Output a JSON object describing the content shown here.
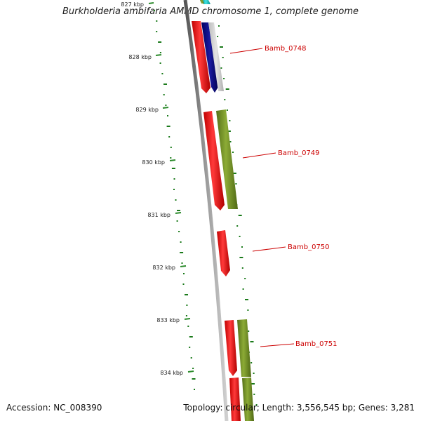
{
  "title": "Burkholderia ambifaria AMMD chromosome 1, complete genome",
  "footer": {
    "accession": "Accession: NC_008390",
    "stats": "Topology: circular; Length: 3,556,545 bp; Genes: 3,281"
  },
  "colors": {
    "backbone": "#888888",
    "kbp_tick": "#2a8a2a",
    "forward_strand": "#ff2020",
    "cds_green": "#7a9a2a",
    "cds_blue": "#0a0a8a",
    "cds_cyan": "#00c0c0",
    "gene_label": "#cc0000",
    "gc_dots": "#1a7a1a"
  },
  "kbp_ticks": [
    {
      "label": "827 kbp",
      "kbp": 827
    },
    {
      "label": "828 kbp",
      "kbp": 828
    },
    {
      "label": "829 kbp",
      "kbp": 829
    },
    {
      "label": "830 kbp",
      "kbp": 830
    },
    {
      "label": "831 kbp",
      "kbp": 831
    },
    {
      "label": "832 kbp",
      "kbp": 832
    },
    {
      "label": "833 kbp",
      "kbp": 833
    },
    {
      "label": "834 kbp",
      "kbp": 834
    }
  ],
  "genes": [
    {
      "name": "Bamb_0748"
    },
    {
      "name": "Bamb_0749"
    },
    {
      "name": "Bamb_0750"
    },
    {
      "name": "Bamb_0751"
    }
  ]
}
